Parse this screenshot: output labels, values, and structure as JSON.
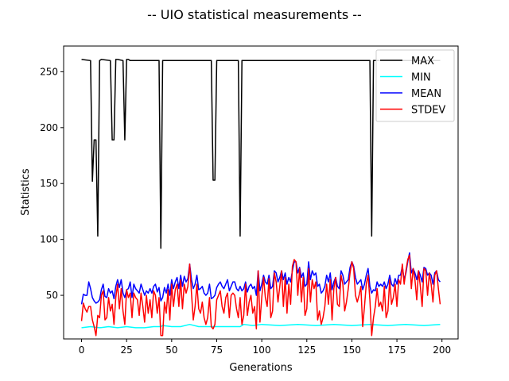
{
  "chart_data": {
    "type": "line",
    "title": "-- UIO statistical measurements --",
    "xlabel": "Generations",
    "ylabel": "Statistics",
    "xlim": [
      -9.95,
      208.95
    ],
    "ylim": [
      11.0,
      273.0
    ],
    "xticks": [
      0,
      25,
      50,
      75,
      100,
      125,
      150,
      175,
      200
    ],
    "yticks": [
      50,
      100,
      150,
      200,
      250
    ],
    "grid": false,
    "legend_position": "top-right",
    "series": [
      {
        "name": "MAX",
        "color": "#000000",
        "x": [
          0,
          5,
          6,
          7,
          8,
          9,
          10,
          11,
          16,
          17,
          18,
          19,
          20,
          23,
          24,
          25,
          26,
          27,
          33,
          43,
          44,
          45,
          46,
          72,
          73,
          74,
          75,
          87,
          88,
          89,
          160,
          161,
          162,
          199
        ],
        "y": [
          261,
          260,
          152,
          189,
          189,
          103,
          260,
          261,
          260,
          189,
          189,
          261,
          261,
          260,
          189,
          261,
          261,
          260,
          260,
          260,
          92,
          260,
          260,
          260,
          153,
          153,
          260,
          260,
          103,
          260,
          260,
          103,
          260,
          260
        ]
      },
      {
        "name": "MIN",
        "color": "#00ffff",
        "x": [
          0,
          5,
          10,
          15,
          20,
          25,
          30,
          35,
          40,
          44,
          45,
          50,
          55,
          60,
          65,
          70,
          75,
          80,
          85,
          88,
          90,
          95,
          100,
          110,
          120,
          130,
          140,
          150,
          160,
          170,
          180,
          190,
          199
        ],
        "y": [
          21,
          22,
          21,
          22,
          21,
          22,
          21,
          21,
          22,
          22,
          23,
          22,
          22,
          24,
          22,
          22,
          22,
          22,
          22,
          22,
          24,
          23,
          24,
          23,
          24,
          23,
          24,
          23,
          24,
          23,
          24,
          23,
          24
        ]
      },
      {
        "name": "MEAN",
        "color": "#0000ff",
        "x": [
          0,
          1,
          2,
          3,
          4,
          5,
          6,
          7,
          8,
          9,
          10,
          11,
          12,
          13,
          14,
          15,
          16,
          17,
          18,
          19,
          20,
          21,
          22,
          23,
          24,
          25,
          26,
          27,
          28,
          29,
          30,
          31,
          32,
          33,
          34,
          35,
          36,
          37,
          38,
          39,
          40,
          41,
          42,
          43,
          44,
          45,
          46,
          47,
          48,
          49,
          50,
          51,
          52,
          53,
          54,
          55,
          56,
          57,
          58,
          59,
          60,
          61,
          62,
          63,
          64,
          65,
          66,
          67,
          68,
          69,
          70,
          71,
          72,
          73,
          74,
          75,
          76,
          77,
          78,
          79,
          80,
          81,
          82,
          83,
          84,
          85,
          86,
          87,
          88,
          89,
          90,
          91,
          92,
          93,
          94,
          95,
          96,
          97,
          98,
          99,
          100,
          101,
          102,
          103,
          104,
          105,
          106,
          107,
          108,
          109,
          110,
          111,
          112,
          113,
          114,
          115,
          116,
          117,
          118,
          119,
          120,
          121,
          122,
          123,
          124,
          125,
          126,
          127,
          128,
          129,
          130,
          131,
          132,
          133,
          134,
          135,
          136,
          137,
          138,
          139,
          140,
          141,
          142,
          143,
          144,
          145,
          146,
          147,
          148,
          149,
          150,
          151,
          152,
          153,
          154,
          155,
          156,
          157,
          158,
          159,
          160,
          161,
          162,
          163,
          164,
          165,
          166,
          167,
          168,
          169,
          170,
          171,
          172,
          173,
          174,
          175,
          176,
          177,
          178,
          179,
          180,
          181,
          182,
          183,
          184,
          185,
          186,
          187,
          188,
          189,
          190,
          191,
          192,
          193,
          194,
          195,
          196,
          197,
          198,
          199
        ],
        "y": [
          42,
          51,
          50,
          50,
          62,
          56,
          48,
          45,
          43,
          44,
          46,
          55,
          60,
          49,
          48,
          56,
          52,
          54,
          47,
          58,
          64,
          57,
          64,
          52,
          48,
          55,
          56,
          62,
          48,
          60,
          56,
          54,
          52,
          60,
          55,
          50,
          54,
          52,
          56,
          52,
          58,
          60,
          53,
          57,
          45,
          48,
          57,
          52,
          60,
          50,
          64,
          56,
          62,
          66,
          56,
          68,
          58,
          67,
          62,
          65,
          78,
          64,
          56,
          60,
          68,
          55,
          56,
          58,
          52,
          50,
          52,
          60,
          47,
          48,
          50,
          57,
          60,
          62,
          58,
          56,
          60,
          64,
          54,
          58,
          62,
          62,
          56,
          54,
          58,
          54,
          56,
          62,
          53,
          58,
          60,
          56,
          58,
          50,
          72,
          54,
          60,
          68,
          62,
          60,
          68,
          56,
          58,
          72,
          70,
          62,
          66,
          72,
          64,
          70,
          60,
          66,
          62,
          72,
          80,
          80,
          70,
          75,
          66,
          70,
          58,
          60,
          80,
          64,
          72,
          68,
          70,
          58,
          60,
          52,
          54,
          58,
          68,
          62,
          70,
          55,
          62,
          66,
          58,
          56,
          72,
          68,
          60,
          62,
          64,
          75,
          80,
          76,
          66,
          60,
          62,
          64,
          55,
          60,
          68,
          74,
          58,
          52,
          55,
          54,
          62,
          58,
          60,
          58,
          62,
          56,
          60,
          68,
          60,
          58,
          65,
          60,
          68,
          68,
          76,
          64,
          70,
          80,
          88,
          70,
          74,
          70,
          64,
          72,
          68,
          62,
          75,
          74,
          68,
          70,
          68,
          60,
          70,
          72,
          64,
          62
        ]
      },
      {
        "name": "STDEV",
        "color": "#ff0000",
        "x": [
          0,
          1,
          2,
          3,
          4,
          5,
          6,
          7,
          8,
          9,
          10,
          11,
          12,
          13,
          14,
          15,
          16,
          17,
          18,
          19,
          20,
          21,
          22,
          23,
          24,
          25,
          26,
          27,
          28,
          29,
          30,
          31,
          32,
          33,
          34,
          35,
          36,
          37,
          38,
          39,
          40,
          41,
          42,
          43,
          44,
          45,
          46,
          47,
          48,
          49,
          50,
          51,
          52,
          53,
          54,
          55,
          56,
          57,
          58,
          59,
          60,
          61,
          62,
          63,
          64,
          65,
          66,
          67,
          68,
          69,
          70,
          71,
          72,
          73,
          74,
          75,
          76,
          77,
          78,
          79,
          80,
          81,
          82,
          83,
          84,
          85,
          86,
          87,
          88,
          89,
          90,
          91,
          92,
          93,
          94,
          95,
          96,
          97,
          98,
          99,
          100,
          101,
          102,
          103,
          104,
          105,
          106,
          107,
          108,
          109,
          110,
          111,
          112,
          113,
          114,
          115,
          116,
          117,
          118,
          119,
          120,
          121,
          122,
          123,
          124,
          125,
          126,
          127,
          128,
          129,
          130,
          131,
          132,
          133,
          134,
          135,
          136,
          137,
          138,
          139,
          140,
          141,
          142,
          143,
          144,
          145,
          146,
          147,
          148,
          149,
          150,
          151,
          152,
          153,
          154,
          155,
          156,
          157,
          158,
          159,
          160,
          161,
          162,
          163,
          164,
          165,
          166,
          167,
          168,
          169,
          170,
          171,
          172,
          173,
          174,
          175,
          176,
          177,
          178,
          179,
          180,
          181,
          182,
          183,
          184,
          185,
          186,
          187,
          188,
          189,
          190,
          191,
          192,
          193,
          194,
          195,
          196,
          197,
          198,
          199
        ],
        "y": [
          27,
          43,
          38,
          35,
          40,
          40,
          28,
          22,
          14,
          32,
          30,
          50,
          54,
          28,
          30,
          48,
          36,
          42,
          24,
          48,
          60,
          38,
          56,
          36,
          24,
          55,
          48,
          52,
          30,
          52,
          48,
          46,
          32,
          52,
          40,
          26,
          50,
          34,
          46,
          30,
          54,
          50,
          34,
          48,
          14,
          14,
          44,
          34,
          55,
          28,
          60,
          40,
          55,
          60,
          40,
          64,
          38,
          60,
          52,
          58,
          78,
          52,
          28,
          40,
          60,
          38,
          34,
          44,
          30,
          24,
          30,
          48,
          22,
          20,
          24,
          46,
          50,
          54,
          40,
          34,
          48,
          52,
          30,
          50,
          52,
          50,
          38,
          30,
          48,
          24,
          32,
          60,
          32,
          44,
          50,
          34,
          40,
          20,
          72,
          26,
          48,
          66,
          48,
          40,
          65,
          30,
          36,
          70,
          62,
          44,
          58,
          72,
          40,
          66,
          34,
          60,
          42,
          76,
          82,
          80,
          50,
          74,
          44,
          66,
          32,
          38,
          74,
          44,
          64,
          56,
          62,
          28,
          36,
          24,
          30,
          40,
          60,
          42,
          64,
          28,
          56,
          66,
          42,
          40,
          68,
          60,
          36,
          44,
          56,
          70,
          80,
          74,
          50,
          44,
          50,
          58,
          22,
          40,
          60,
          68,
          46,
          14,
          30,
          40,
          56,
          40,
          44,
          36,
          58,
          30,
          36,
          64,
          42,
          48,
          60,
          40,
          64,
          60,
          78,
          60,
          72,
          82,
          86,
          56,
          74,
          64,
          46,
          72,
          58,
          40,
          74,
          72,
          50,
          70,
          60,
          44,
          68,
          72,
          56,
          42
        ]
      }
    ]
  }
}
